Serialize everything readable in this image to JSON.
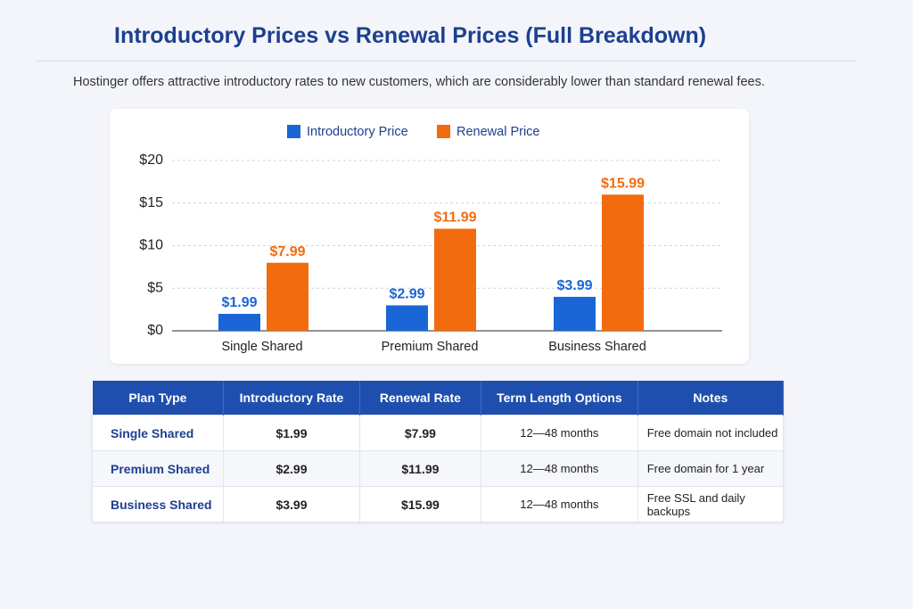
{
  "title": "Introductory Prices vs Renewal Prices (Full Breakdown)",
  "subtitle": "Hostinger offers attractive introductory rates to new customers, which are considerably lower than standard renewal fees.",
  "chart_data": {
    "type": "bar",
    "categories": [
      "Single Shared",
      "Premium Shared",
      "Business Shared"
    ],
    "series": [
      {
        "name": "Introductory Price",
        "color": "#1a66d6",
        "values": [
          1.99,
          2.99,
          3.99
        ],
        "value_labels": [
          "$1.99",
          "$2.99",
          "$3.99"
        ]
      },
      {
        "name": "Renewal Price",
        "color": "#f26b0f",
        "values": [
          7.99,
          11.99,
          15.99
        ],
        "value_labels": [
          "$7.99",
          "$11.99",
          "$15.99"
        ]
      }
    ],
    "ylim": [
      0,
      20
    ],
    "yticks": [
      {
        "value": 0,
        "label": "$0"
      },
      {
        "value": 5,
        "label": "$5"
      },
      {
        "value": 10,
        "label": "$10"
      },
      {
        "value": 15,
        "label": "$15"
      },
      {
        "value": 20,
        "label": "$20"
      }
    ],
    "grid": true,
    "legend": "top"
  },
  "table": {
    "columns": [
      "Plan Type",
      "Introductory Rate",
      "Renewal Rate",
      "Term Length Options",
      "Notes"
    ],
    "rows": [
      [
        "Single Shared",
        "$1.99",
        "$7.99",
        "12—48 months",
        "Free domain not included"
      ],
      [
        "Premium Shared",
        "$2.99",
        "$11.99",
        "12—48 months",
        "Free domain for 1 year"
      ],
      [
        "Business Shared",
        "$3.99",
        "$15.99",
        "12—48 months",
        "Free SSL and daily backups"
      ]
    ]
  }
}
